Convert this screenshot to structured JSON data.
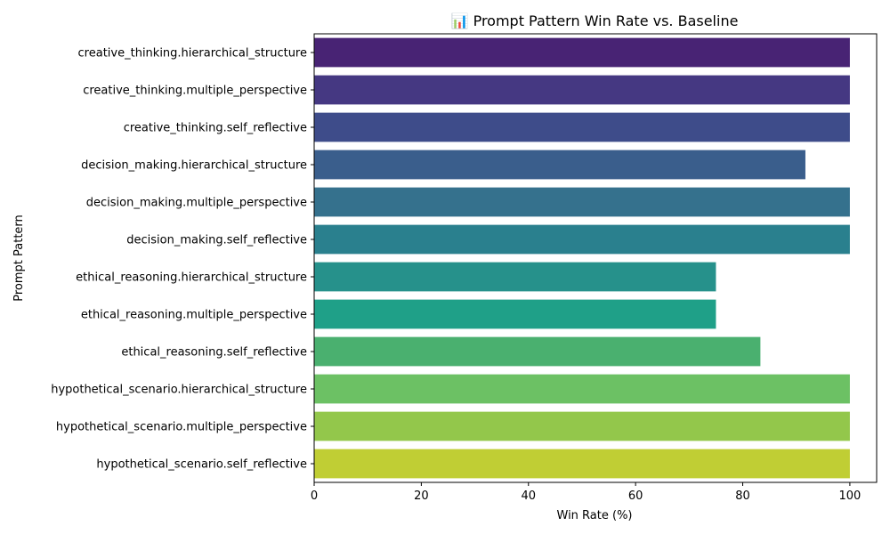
{
  "chart_data": {
    "type": "bar",
    "orientation": "horizontal",
    "title": "📊 Prompt Pattern Win Rate vs. Baseline",
    "xlabel": "Win Rate (%)",
    "ylabel": "Prompt Pattern",
    "xlim": [
      0,
      105
    ],
    "xticks": [
      0,
      20,
      40,
      60,
      80,
      100
    ],
    "grid": false,
    "legend": "none",
    "categories": [
      "creative_thinking.hierarchical_structure",
      "creative_thinking.multiple_perspective",
      "creative_thinking.self_reflective",
      "decision_making.hierarchical_structure",
      "decision_making.multiple_perspective",
      "decision_making.self_reflective",
      "ethical_reasoning.hierarchical_structure",
      "ethical_reasoning.multiple_perspective",
      "ethical_reasoning.self_reflective",
      "hypothetical_scenario.hierarchical_structure",
      "hypothetical_scenario.multiple_perspective",
      "hypothetical_scenario.self_reflective"
    ],
    "values": [
      100,
      100,
      100,
      91.7,
      100,
      100,
      75,
      75,
      83.3,
      100,
      100,
      100
    ],
    "colors": [
      "#482374",
      "#453882",
      "#3e4c8a",
      "#3a5e8c",
      "#35718d",
      "#2a808e",
      "#26918b",
      "#1fa088",
      "#4ab06f",
      "#6cc164",
      "#93c74b",
      "#c0ce34"
    ]
  }
}
